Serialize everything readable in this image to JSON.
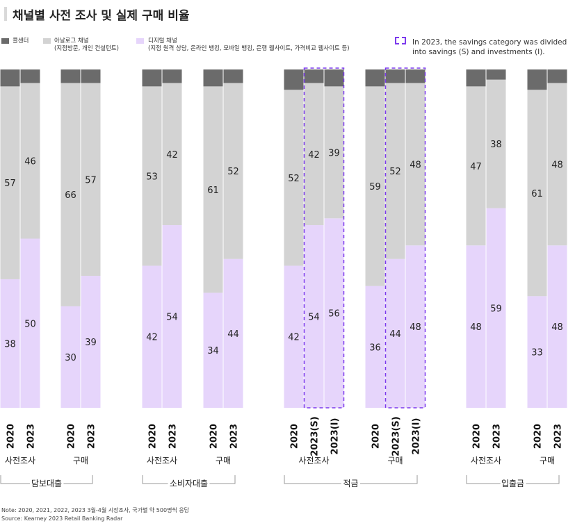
{
  "title": "채널별 사전 조사 및 실제 구매 비율",
  "legend": {
    "call_center": {
      "label": "콜센터",
      "color": "#6b6b6b"
    },
    "analog": {
      "label": "아날로그 채널",
      "sublabel": "(지점방문, 개인 컨설턴트)",
      "color": "#d3d3d3"
    },
    "digital": {
      "label": "디지털 채널",
      "sublabel": "(지점 원격 상담, 온라인 뱅킹, 모바일 뱅킹, 은행 웹사이트, 가격비교 웹사이트 등)",
      "color": "#e6d5fb"
    },
    "note_line1": "In 2023, the savings category was divided",
    "note_line2": "into savings (S) and investments (I)."
  },
  "chart_data": {
    "type": "bar",
    "stacked": true,
    "normalized_to_100": true,
    "series_order": [
      "digital",
      "analog",
      "call_center"
    ],
    "groups": [
      {
        "product": "담보대출",
        "subgroups": [
          {
            "label": "사전조사",
            "bars": [
              {
                "year": "2020",
                "digital": 38,
                "analog": 57,
                "call_center": 5
              },
              {
                "year": "2023",
                "digital": 50,
                "analog": 46,
                "call_center": 4
              }
            ]
          },
          {
            "label": "구매",
            "bars": [
              {
                "year": "2020",
                "digital": 30,
                "analog": 66,
                "call_center": 4
              },
              {
                "year": "2023",
                "digital": 39,
                "analog": 57,
                "call_center": 4
              }
            ]
          }
        ]
      },
      {
        "product": "소비자대출",
        "subgroups": [
          {
            "label": "사전조사",
            "bars": [
              {
                "year": "2020",
                "digital": 42,
                "analog": 53,
                "call_center": 5
              },
              {
                "year": "2023",
                "digital": 54,
                "analog": 42,
                "call_center": 4
              }
            ]
          },
          {
            "label": "구매",
            "bars": [
              {
                "year": "2020",
                "digital": 34,
                "analog": 61,
                "call_center": 5
              },
              {
                "year": "2023",
                "digital": 44,
                "analog": 52,
                "call_center": 4
              }
            ]
          }
        ]
      },
      {
        "product": "적금",
        "subgroups": [
          {
            "label": "사전조사",
            "bars": [
              {
                "year": "2020",
                "digital": 42,
                "analog": 52,
                "call_center": 6
              },
              {
                "year": "2023(S)",
                "digital": 54,
                "analog": 42,
                "call_center": 4,
                "highlight": true
              },
              {
                "year": "2023(I)",
                "digital": 56,
                "analog": 39,
                "call_center": 5,
                "highlight": true
              }
            ]
          },
          {
            "label": "구매",
            "bars": [
              {
                "year": "2020",
                "digital": 36,
                "analog": 59,
                "call_center": 5
              },
              {
                "year": "2023(S)",
                "digital": 44,
                "analog": 52,
                "call_center": 4,
                "highlight": true
              },
              {
                "year": "2023(I)",
                "digital": 48,
                "analog": 48,
                "call_center": 4,
                "highlight": true
              }
            ]
          }
        ]
      },
      {
        "product": "입출금",
        "subgroups": [
          {
            "label": "사전조사",
            "bars": [
              {
                "year": "2020",
                "digital": 48,
                "analog": 47,
                "call_center": 5
              },
              {
                "year": "2023",
                "digital": 59,
                "analog": 38,
                "call_center": 3
              }
            ]
          },
          {
            "label": "구매",
            "bars": [
              {
                "year": "2020",
                "digital": 33,
                "analog": 61,
                "call_center": 6
              },
              {
                "year": "2023",
                "digital": 48,
                "analog": 48,
                "call_center": 4
              }
            ]
          }
        ]
      }
    ],
    "ylim": [
      0,
      100
    ]
  },
  "note_line": "Note: 2020, 2021, 2022, 2023 3월-4월 시장조사, 국가별 약 500명씩 응답",
  "source_line": "Source: Kearney 2023 Retail Banking Radar"
}
